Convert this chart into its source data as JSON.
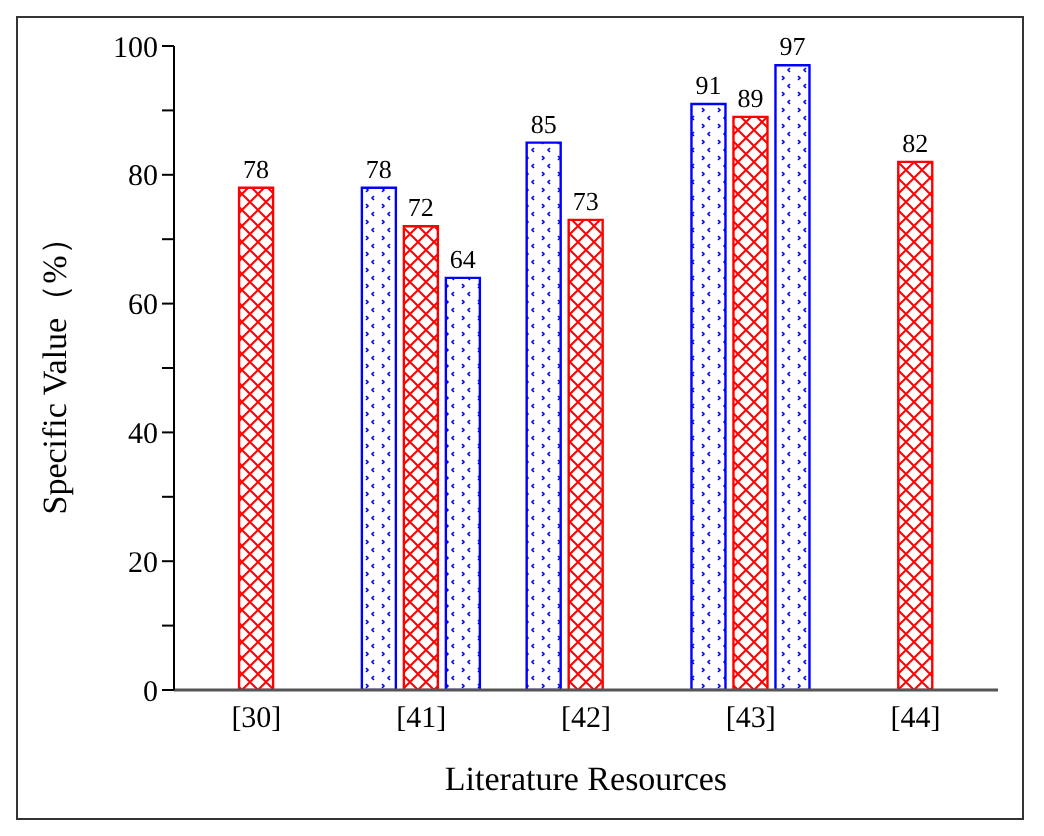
{
  "chart_data": {
    "type": "bar",
    "xlabel": "Literature Resources",
    "ylabel": "Specific Value（%）",
    "categories": [
      "[30]",
      "[41]",
      "[42]",
      "[43]",
      "[44]"
    ],
    "series": [
      {
        "color": "#0000ff",
        "values": [
          null,
          78,
          85,
          91,
          null
        ]
      },
      {
        "color": "#ff0000",
        "values": [
          78,
          72,
          73,
          89,
          82
        ]
      },
      {
        "color": "#0000ff",
        "values": [
          null,
          64,
          null,
          97,
          null
        ]
      }
    ],
    "ylim": [
      0,
      100
    ],
    "yticks": [
      0,
      {
        "value": 10,
        "label": null
      },
      20,
      {
        "value": 30,
        "label": null
      },
      40,
      {
        "value": 50,
        "label": null
      },
      60,
      {
        "value": 70,
        "label": null
      },
      80,
      {
        "value": 90,
        "label": null
      },
      100
    ],
    "data_labels": true,
    "grid": false,
    "legend": false
  }
}
